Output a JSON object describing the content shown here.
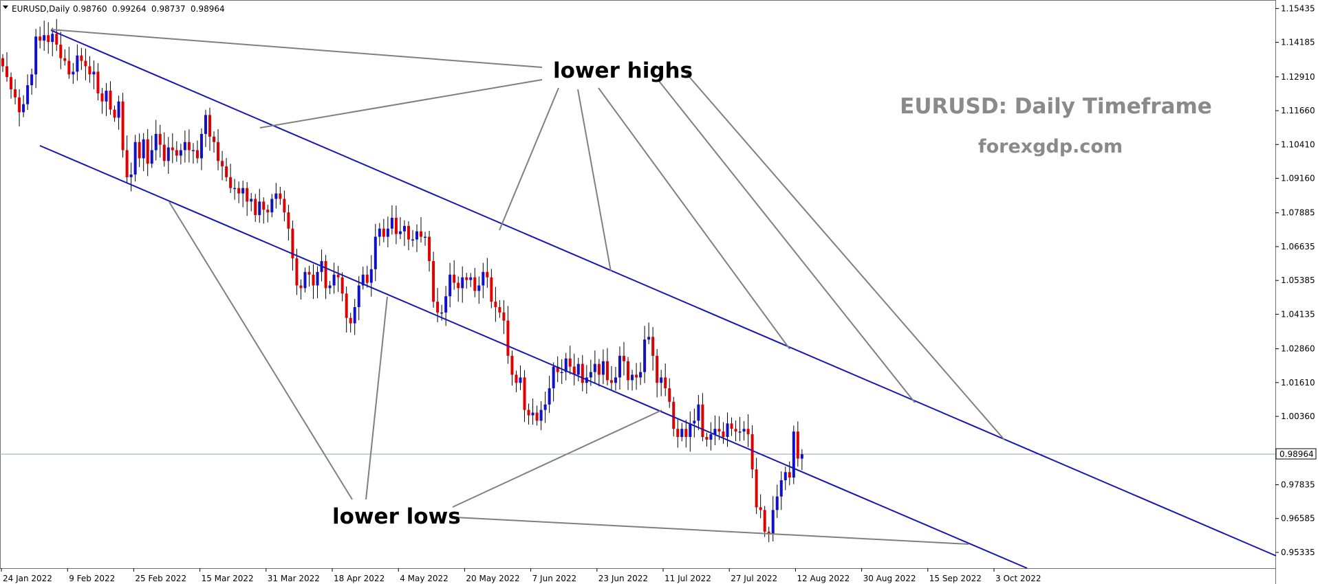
{
  "header": {
    "symbol": "EURUSD,Daily",
    "open": "0.98760",
    "high": "0.99264",
    "low": "0.98737",
    "close": "0.98964"
  },
  "watermark": {
    "title": "EURUSD: Daily Timeframe",
    "site": "forexgdp.com"
  },
  "annotations": {
    "lower_highs": "lower highs",
    "lower_lows": "lower lows"
  },
  "current_price": "0.98964",
  "colors": {
    "bull": "#1010c8",
    "bear": "#e00000",
    "channel": "#1515b8",
    "pointer": "#7f7f7f",
    "price_line": "#9aa4b4"
  },
  "chart_data": {
    "type": "candlestick",
    "symbol": "EURUSD",
    "timeframe": "Daily",
    "ylim": [
      0.9475,
      1.1575
    ],
    "y_ticks": [
      "1.15435",
      "1.14185",
      "1.12910",
      "1.11660",
      "1.10410",
      "1.09160",
      "1.07885",
      "1.06635",
      "1.05385",
      "1.04135",
      "1.02860",
      "1.01610",
      "1.00360",
      "0.97835",
      "0.96585",
      "0.95335"
    ],
    "x_ticks": [
      "24 Jan 2022",
      "9 Feb 2022",
      "25 Feb 2022",
      "15 Mar 2022",
      "31 Mar 2022",
      "18 Apr 2022",
      "4 May 2022",
      "20 May 2022",
      "7 Jun 2022",
      "23 Jun 2022",
      "11 Jul 2022",
      "27 Jul 2022",
      "12 Aug 2022",
      "30 Aug 2022",
      "15 Sep 2022",
      "3 Oct 2022"
    ],
    "closes": [
      1.133,
      1.129,
      1.1245,
      1.1215,
      1.116,
      1.119,
      1.126,
      1.13,
      1.144,
      1.1425,
      1.1445,
      1.142,
      1.145,
      1.141,
      1.136,
      1.135,
      1.13,
      1.131,
      1.137,
      1.135,
      1.133,
      1.13,
      1.131,
      1.123,
      1.12,
      1.124,
      1.117,
      1.114,
      1.12,
      1.102,
      1.092,
      1.093,
      1.105,
      1.099,
      1.106,
      1.097,
      1.102,
      1.108,
      1.104,
      1.098,
      1.103,
      1.102,
      1.1,
      1.102,
      1.105,
      1.102,
      1.102,
      1.099,
      1.108,
      1.115,
      1.107,
      1.105,
      1.098,
      1.096,
      1.092,
      1.088,
      1.088,
      1.086,
      1.088,
      1.083,
      1.084,
      1.078,
      1.083,
      1.08,
      1.079,
      1.084,
      1.086,
      1.084,
      1.079,
      1.073,
      1.062,
      1.052,
      1.051,
      1.057,
      1.056,
      1.052,
      1.057,
      1.061,
      1.051,
      1.052,
      1.056,
      1.055,
      1.049,
      1.04,
      1.038,
      1.044,
      1.052,
      1.056,
      1.053,
      1.058,
      1.07,
      1.073,
      1.07,
      1.073,
      1.077,
      1.071,
      1.072,
      1.074,
      1.069,
      1.069,
      1.072,
      1.07,
      1.07,
      1.061,
      1.046,
      1.042,
      1.042,
      1.048,
      1.056,
      1.053,
      1.051,
      1.055,
      1.054,
      1.055,
      1.05,
      1.052,
      1.057,
      1.055,
      1.046,
      1.044,
      1.042,
      1.039,
      1.026,
      1.019,
      1.016,
      1.018,
      1.006,
      1.004,
      1.005,
      1.002,
      1.006,
      1.008,
      1.014,
      1.022,
      1.02,
      1.02,
      1.025,
      1.022,
      1.019,
      1.023,
      1.016,
      1.018,
      1.02,
      1.023,
      1.019,
      1.024,
      1.017,
      1.016,
      1.018,
      1.026,
      1.024,
      1.017,
      1.019,
      1.018,
      1.02,
      1.032,
      1.033,
      1.026,
      1.016,
      1.018,
      1.014,
      1.009,
      0.999,
      0.996,
      0.999,
      0.996,
      1.001,
      1.002,
      1.008,
      0.996,
      0.995,
      0.997,
      0.999,
      0.998,
      0.996,
      1.001,
      0.999,
      0.998,
      0.998,
      0.999,
      0.997,
      0.984,
      0.97,
      0.969,
      0.961,
      0.96,
      0.969,
      0.974,
      0.98,
      0.983,
      0.981,
      0.998,
      0.988,
      0.9896
    ]
  }
}
